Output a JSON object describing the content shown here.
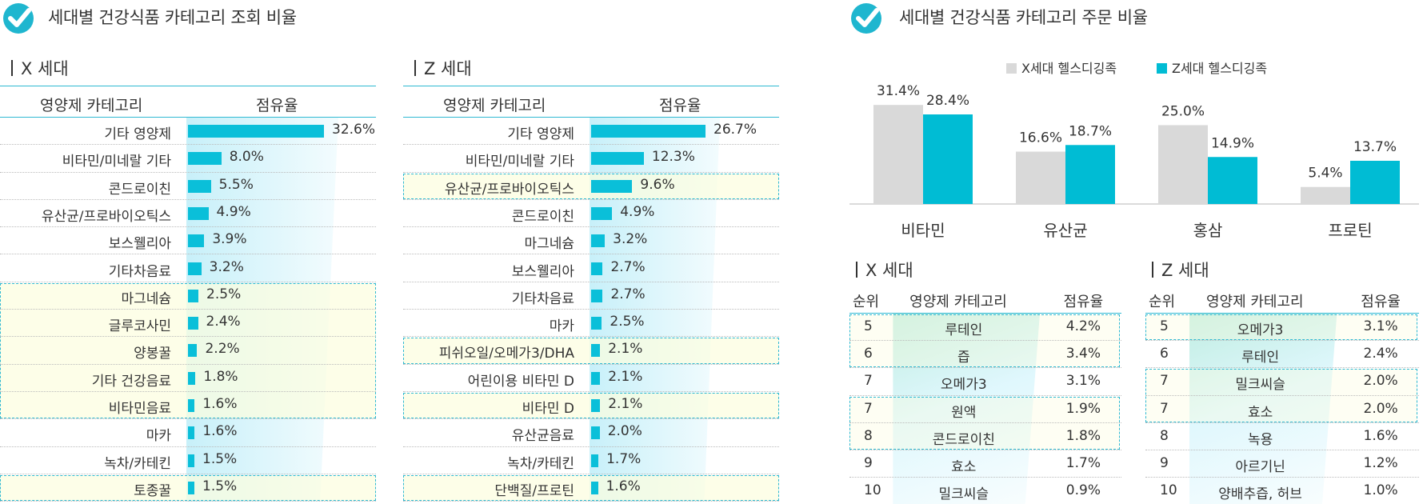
{
  "titles": {
    "left": "세대별 건강식품 카테고리 조회 비율",
    "right": "세대별 건강식품 카테고리 주문 비율"
  },
  "colors": {
    "accent": "#0abfd9",
    "x_series": "#d9d9d9",
    "z_series": "#00bcd4",
    "highlight_border": "#2fb9d2"
  },
  "view_x": {
    "label": "X 세대",
    "col_category": "영양제 카테고리",
    "col_share": "점유율",
    "rows": [
      {
        "category": "기타 영양제",
        "value": 32.6,
        "label": "32.6%",
        "highlight": false
      },
      {
        "category": "비타민/미네랄 기타",
        "value": 8.0,
        "label": "8.0%",
        "highlight": false
      },
      {
        "category": "콘드로이친",
        "value": 5.5,
        "label": "5.5%",
        "highlight": false
      },
      {
        "category": "유산균/프로바이오틱스",
        "value": 4.9,
        "label": "4.9%",
        "highlight": false
      },
      {
        "category": "보스웰리아",
        "value": 3.9,
        "label": "3.9%",
        "highlight": false
      },
      {
        "category": "기타차음료",
        "value": 3.2,
        "label": "3.2%",
        "highlight": false
      },
      {
        "category": "마그네슘",
        "value": 2.5,
        "label": "2.5%",
        "highlight": true
      },
      {
        "category": "글루코사민",
        "value": 2.4,
        "label": "2.4%",
        "highlight": true
      },
      {
        "category": "양봉꿀",
        "value": 2.2,
        "label": "2.2%",
        "highlight": true
      },
      {
        "category": "기타 건강음료",
        "value": 1.8,
        "label": "1.8%",
        "highlight": true
      },
      {
        "category": "비타민음료",
        "value": 1.6,
        "label": "1.6%",
        "highlight": true
      },
      {
        "category": "마카",
        "value": 1.6,
        "label": "1.6%",
        "highlight": false
      },
      {
        "category": "녹차/카테킨",
        "value": 1.5,
        "label": "1.5%",
        "highlight": false
      },
      {
        "category": "토종꿀",
        "value": 1.5,
        "label": "1.5%",
        "highlight": true
      }
    ]
  },
  "view_z": {
    "label": "Z 세대",
    "col_category": "영양제 카테고리",
    "col_share": "점유율",
    "rows": [
      {
        "category": "기타 영양제",
        "value": 26.7,
        "label": "26.7%",
        "highlight": false
      },
      {
        "category": "비타민/미네랄 기타",
        "value": 12.3,
        "label": "12.3%",
        "highlight": false
      },
      {
        "category": "유산균/프로바이오틱스",
        "value": 9.6,
        "label": "9.6%",
        "highlight": true
      },
      {
        "category": "콘드로이친",
        "value": 4.9,
        "label": "4.9%",
        "highlight": false
      },
      {
        "category": "마그네슘",
        "value": 3.2,
        "label": "3.2%",
        "highlight": false
      },
      {
        "category": "보스웰리아",
        "value": 2.7,
        "label": "2.7%",
        "highlight": false
      },
      {
        "category": "기타차음료",
        "value": 2.7,
        "label": "2.7%",
        "highlight": false
      },
      {
        "category": "마카",
        "value": 2.5,
        "label": "2.5%",
        "highlight": false
      },
      {
        "category": "피쉬오일/오메가3/DHA",
        "value": 2.1,
        "label": "2.1%",
        "highlight": true
      },
      {
        "category": "어린이용 비타민 D",
        "value": 2.1,
        "label": "2.1%",
        "highlight": false
      },
      {
        "category": "비타민 D",
        "value": 2.1,
        "label": "2.1%",
        "highlight": true
      },
      {
        "category": "유산균음료",
        "value": 2.0,
        "label": "2.0%",
        "highlight": false
      },
      {
        "category": "녹차/카테킨",
        "value": 1.7,
        "label": "1.7%",
        "highlight": false
      },
      {
        "category": "단백질/프로틴",
        "value": 1.6,
        "label": "1.6%",
        "highlight": true
      }
    ]
  },
  "chart_data": {
    "type": "bar",
    "title": "세대별 건강식품 카테고리 주문 비율",
    "categories": [
      "비타민",
      "유산균",
      "홍삼",
      "프로틴"
    ],
    "series": [
      {
        "name": "X세대 헬스디깅족",
        "values": [
          31.4,
          16.6,
          25.0,
          5.4
        ],
        "labels": [
          "31.4%",
          "16.6%",
          "25.0%",
          "5.4%"
        ]
      },
      {
        "name": "Z세대 헬스디깅족",
        "values": [
          28.4,
          18.7,
          14.9,
          13.7
        ],
        "labels": [
          "28.4%",
          "18.7%",
          "14.9%",
          "13.7%"
        ]
      }
    ],
    "ylim": [
      0,
      35
    ],
    "legend": "top-center",
    "grid": false
  },
  "order_x": {
    "label": "X 세대",
    "col_rank": "순위",
    "col_category": "영양제 카테고리",
    "col_share": "점유율",
    "rows": [
      {
        "rank": "5",
        "category": "루테인",
        "share": "4.2%",
        "highlight": true
      },
      {
        "rank": "6",
        "category": "즙",
        "share": "3.4%",
        "highlight": true
      },
      {
        "rank": "7",
        "category": "오메가3",
        "share": "3.1%",
        "highlight": false
      },
      {
        "rank": "7",
        "category": "원액",
        "share": "1.9%",
        "highlight": true
      },
      {
        "rank": "8",
        "category": "콘드로이친",
        "share": "1.8%",
        "highlight": true
      },
      {
        "rank": "9",
        "category": "효소",
        "share": "1.7%",
        "highlight": false
      },
      {
        "rank": "10",
        "category": "밀크씨슬",
        "share": "0.9%",
        "highlight": false
      }
    ]
  },
  "order_z": {
    "label": "Z 세대",
    "col_rank": "순위",
    "col_category": "영양제 카테고리",
    "col_share": "점유율",
    "rows": [
      {
        "rank": "5",
        "category": "오메가3",
        "share": "3.1%",
        "highlight": true
      },
      {
        "rank": "6",
        "category": "루테인",
        "share": "2.4%",
        "highlight": false
      },
      {
        "rank": "7",
        "category": "밀크씨슬",
        "share": "2.0%",
        "highlight": true
      },
      {
        "rank": "7",
        "category": "효소",
        "share": "2.0%",
        "highlight": true
      },
      {
        "rank": "8",
        "category": "녹용",
        "share": "1.6%",
        "highlight": false
      },
      {
        "rank": "9",
        "category": "아르기닌",
        "share": "1.2%",
        "highlight": false
      },
      {
        "rank": "10",
        "category": "양배추즙, 허브",
        "share": "1.0%",
        "highlight": false
      }
    ]
  }
}
